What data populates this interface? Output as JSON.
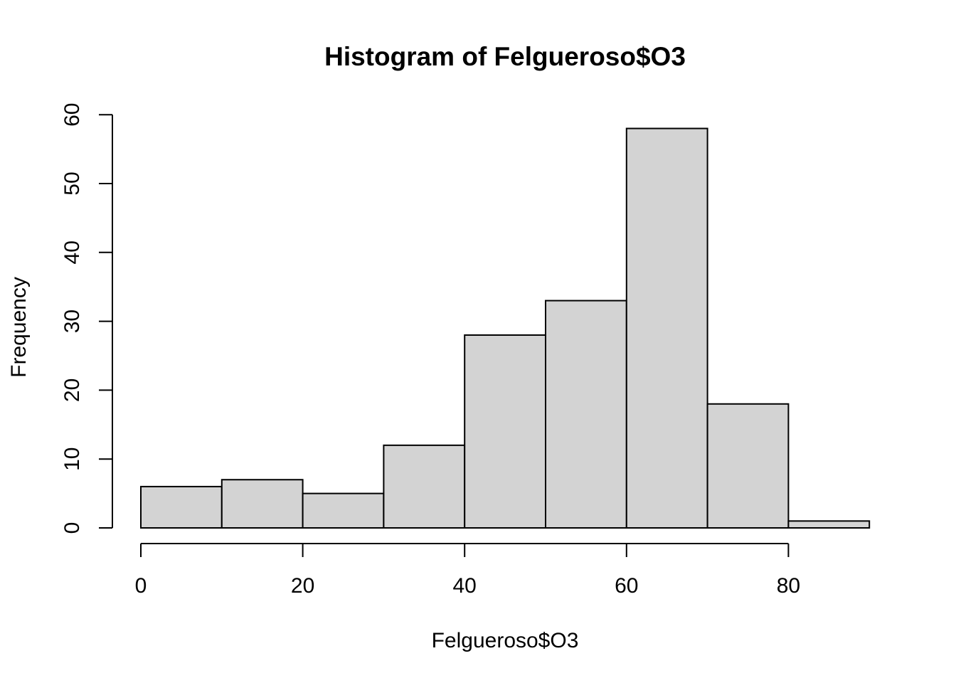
{
  "chart_data": {
    "type": "bar",
    "title": "Histogram of Felgueroso$O3",
    "xlabel": "Felgueroso$O3",
    "ylabel": "Frequency",
    "bins": [
      {
        "x0": 0,
        "x1": 10,
        "count": 6
      },
      {
        "x0": 10,
        "x1": 20,
        "count": 7
      },
      {
        "x0": 20,
        "x1": 30,
        "count": 5
      },
      {
        "x0": 30,
        "x1": 40,
        "count": 12
      },
      {
        "x0": 40,
        "x1": 50,
        "count": 28
      },
      {
        "x0": 50,
        "x1": 60,
        "count": 33
      },
      {
        "x0": 60,
        "x1": 70,
        "count": 58
      },
      {
        "x0": 70,
        "x1": 80,
        "count": 18
      },
      {
        "x0": 80,
        "x1": 90,
        "count": 1
      }
    ],
    "xlim": [
      0,
      90
    ],
    "ylim": [
      0,
      60
    ],
    "x_ticks": [
      0,
      20,
      40,
      60,
      80
    ],
    "y_ticks": [
      0,
      10,
      20,
      30,
      40,
      50,
      60
    ],
    "bar_color": "#d3d3d3",
    "border_color": "#000000",
    "grid": false,
    "legend": "none"
  }
}
